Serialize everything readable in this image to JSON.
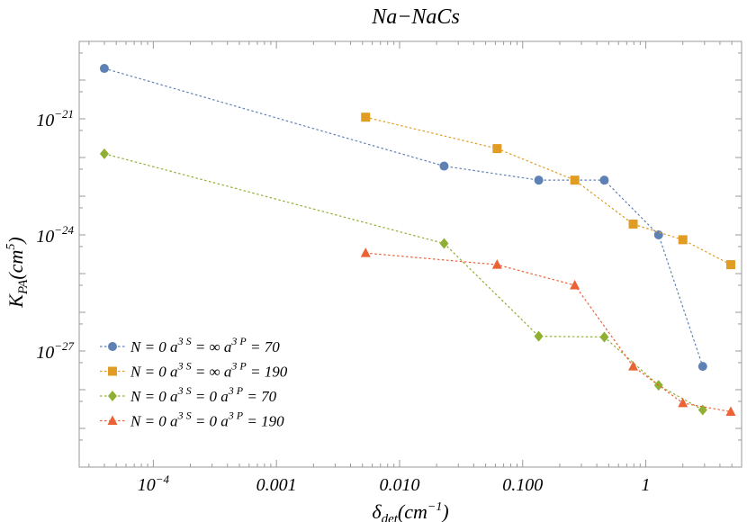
{
  "chart_data": {
    "type": "scatter",
    "title": "Na−NaCs",
    "xlabel": "δ",
    "xlabel_sub": "det",
    "xlabel_unit": "(cm",
    "xlabel_unit_sup": "−1",
    "xlabel_close": ")",
    "ylabel": "K",
    "ylabel_sub": "PA",
    "ylabel_unit": "(cm",
    "ylabel_unit_sup": "5",
    "ylabel_close": ")",
    "x_scale": "log",
    "y_scale": "log",
    "xlim": [
      2.5e-05,
      6
    ],
    "ylim": [
      1e-30,
      1e-19
    ],
    "x_ticks": [
      {
        "value": 0.0001,
        "label": "10",
        "sup": "−4"
      },
      {
        "value": 0.001,
        "label": "0.001",
        "sup": ""
      },
      {
        "value": 0.01,
        "label": "0.010",
        "sup": ""
      },
      {
        "value": 0.1,
        "label": "0.100",
        "sup": ""
      },
      {
        "value": 1,
        "label": "1",
        "sup": ""
      }
    ],
    "y_ticks": [
      {
        "value": 1e-21,
        "label": "10",
        "sup": "−21"
      },
      {
        "value": 1e-24,
        "label": "10",
        "sup": "−24"
      },
      {
        "value": 1e-27,
        "label": "10",
        "sup": "−27"
      }
    ],
    "grid": false,
    "legend_position": "bottom-left",
    "series": [
      {
        "name": "N = 0 a^{3S} = ∞ a^{3P} = 70",
        "legend_parts": [
          "N = 0 a",
          "3 S",
          " = ∞ a",
          "3 P",
          " = 70"
        ],
        "color": "#5e81b5",
        "marker": "circle",
        "x": [
          4e-05,
          0.023,
          0.135,
          0.46,
          1.27,
          2.9
        ],
        "y": [
          2e-20,
          6e-23,
          2.6e-23,
          2.6e-23,
          1e-24,
          4e-28
        ]
      },
      {
        "name": "N = 0 a^{3S} = ∞ a^{3P} = 190",
        "legend_parts": [
          "N = 0 a",
          "3 S",
          " = ∞ a",
          "3 P",
          " = 190"
        ],
        "color": "#e19c24",
        "marker": "square",
        "x": [
          0.0053,
          0.062,
          0.265,
          0.79,
          2.0,
          4.9
        ],
        "y": [
          1.1e-21,
          1.7e-22,
          2.6e-23,
          1.9e-24,
          7.5e-25,
          1.7e-25
        ]
      },
      {
        "name": "N = 0 a^{3S} = 0 a^{3P} = 70",
        "legend_parts": [
          "N = 0 a",
          "3 S",
          " = 0 a",
          "3 P",
          " = 70"
        ],
        "color": "#8fb032",
        "marker": "diamond",
        "x": [
          4e-05,
          0.023,
          0.135,
          0.46,
          1.27,
          2.9
        ],
        "y": [
          1.25e-22,
          6e-25,
          2.4e-27,
          2.3e-27,
          1.3e-28,
          3e-29
        ]
      },
      {
        "name": "N = 0 a^{3S} = 0 a^{3P} = 190",
        "legend_parts": [
          "N = 0 a",
          "3 S",
          " = 0 a",
          "3 P",
          " = 190"
        ],
        "color": "#eb6235",
        "marker": "triangle",
        "x": [
          0.0053,
          0.062,
          0.265,
          0.79,
          2.0,
          4.9
        ],
        "y": [
          3.4e-25,
          1.7e-25,
          5e-26,
          4e-28,
          4.5e-29,
          2.7e-29
        ]
      }
    ]
  }
}
